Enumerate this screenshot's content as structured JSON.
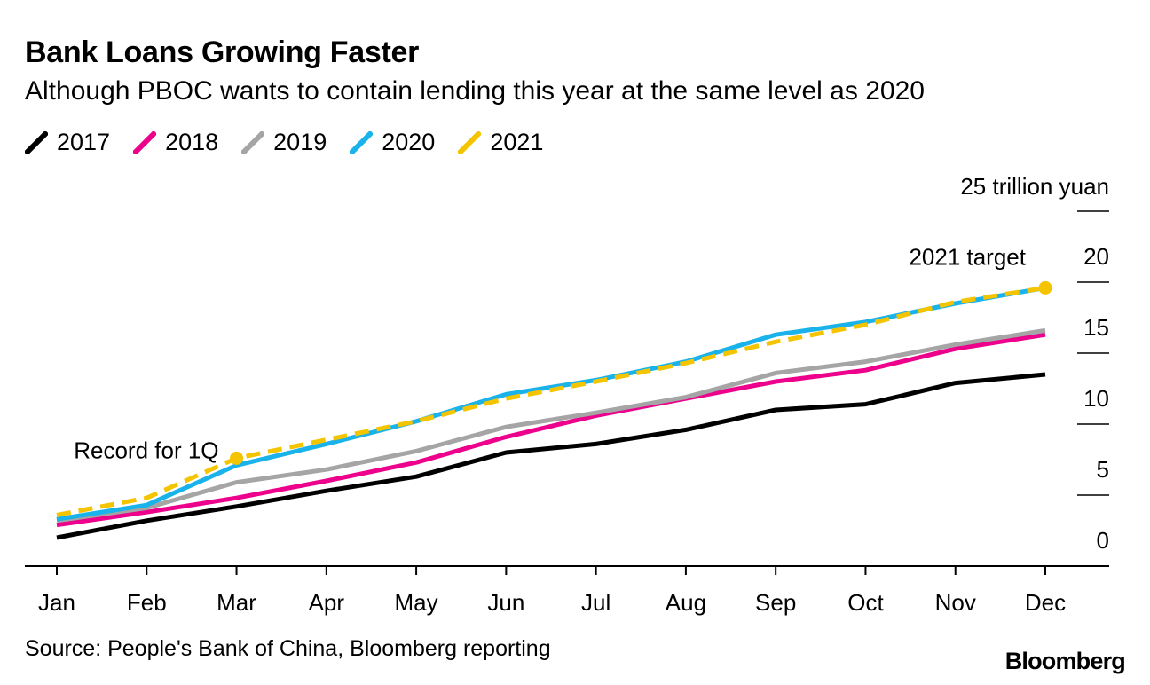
{
  "chart_data": {
    "type": "line",
    "title": "Bank Loans Growing Faster",
    "subtitle": "Although PBOC wants to contain lending this year at the same level as 2020",
    "categories": [
      "Jan",
      "Feb",
      "Mar",
      "Apr",
      "May",
      "Jun",
      "Jul",
      "Aug",
      "Sep",
      "Oct",
      "Nov",
      "Dec"
    ],
    "ylabel": "25 trillion yuan",
    "ylim": [
      0,
      25
    ],
    "yticks": [
      0,
      5,
      10,
      15,
      20
    ],
    "ytick_labels": [
      "0",
      "5",
      "10",
      "15",
      "20"
    ],
    "series": [
      {
        "name": "2017",
        "color": "#000000",
        "dashed": false,
        "values": [
          2.0,
          3.2,
          4.2,
          5.3,
          6.3,
          8.0,
          8.6,
          9.6,
          11.0,
          11.4,
          12.9,
          13.5
        ]
      },
      {
        "name": "2018",
        "color": "#ec008c",
        "dashed": false,
        "values": [
          2.9,
          3.8,
          4.8,
          6.0,
          7.3,
          9.1,
          10.6,
          11.8,
          13.0,
          13.8,
          15.3,
          16.3
        ]
      },
      {
        "name": "2019",
        "color": "#a5a5a5",
        "dashed": false,
        "values": [
          3.2,
          4.1,
          5.9,
          6.8,
          8.1,
          9.8,
          10.8,
          11.9,
          13.6,
          14.4,
          15.6,
          16.6
        ]
      },
      {
        "name": "2020",
        "color": "#1ab2ea",
        "dashed": false,
        "values": [
          3.3,
          4.3,
          7.1,
          8.6,
          10.2,
          12.1,
          13.1,
          14.4,
          16.3,
          17.2,
          18.5,
          19.6
        ]
      },
      {
        "name": "2021",
        "color": "#f5c400",
        "dashed": true,
        "values": [
          3.6,
          4.8,
          7.6,
          8.9,
          10.2,
          11.8,
          13.0,
          14.3,
          15.8,
          17.0,
          18.6,
          19.6
        ]
      }
    ],
    "annotations": [
      {
        "label": "Record for 1Q",
        "series": "2021",
        "category": "Mar",
        "value": 7.6,
        "marker": true
      },
      {
        "label": "2021 target",
        "series": "2021",
        "category": "Dec",
        "value": 19.6,
        "marker": true
      }
    ],
    "legend": "top-left"
  },
  "source": "Source: People's Bank of China, Bloomberg reporting",
  "brand": "Bloomberg"
}
